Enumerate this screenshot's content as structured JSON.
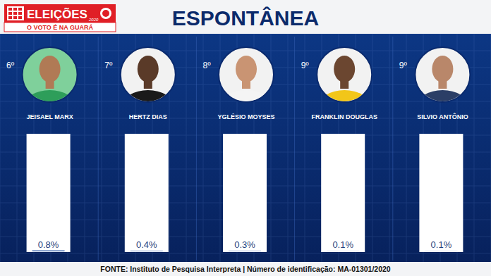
{
  "header": {
    "brand": "ELEIÇÕES",
    "year": "2020",
    "slogan": "O VOTO É NA GUARÁ"
  },
  "chart_data": {
    "type": "bar",
    "title": "ESPONTÂNEA",
    "categories": [
      "JEISAEL MARX",
      "HERTZ DIAS",
      "YGLÉSIO MOYSES",
      "FRANKLIN DOUGLAS",
      "SILVIO ANTÔNIO"
    ],
    "ranks": [
      "6º",
      "7º",
      "8º",
      "9º",
      "9º"
    ],
    "values": [
      0.8,
      0.4,
      0.3,
      0.1,
      0.1
    ],
    "value_labels": [
      "0.8%",
      "0.4%",
      "0.3%",
      "0.1%",
      "0.1%"
    ],
    "color": "#1f4fa0",
    "ylim": [
      0,
      100
    ],
    "grid": false,
    "data_labels": true,
    "tick_labels": false,
    "source": "FONTE: Instituto de Pesquisa Interpreta | Número de identificação: MA-01301/2020"
  }
}
